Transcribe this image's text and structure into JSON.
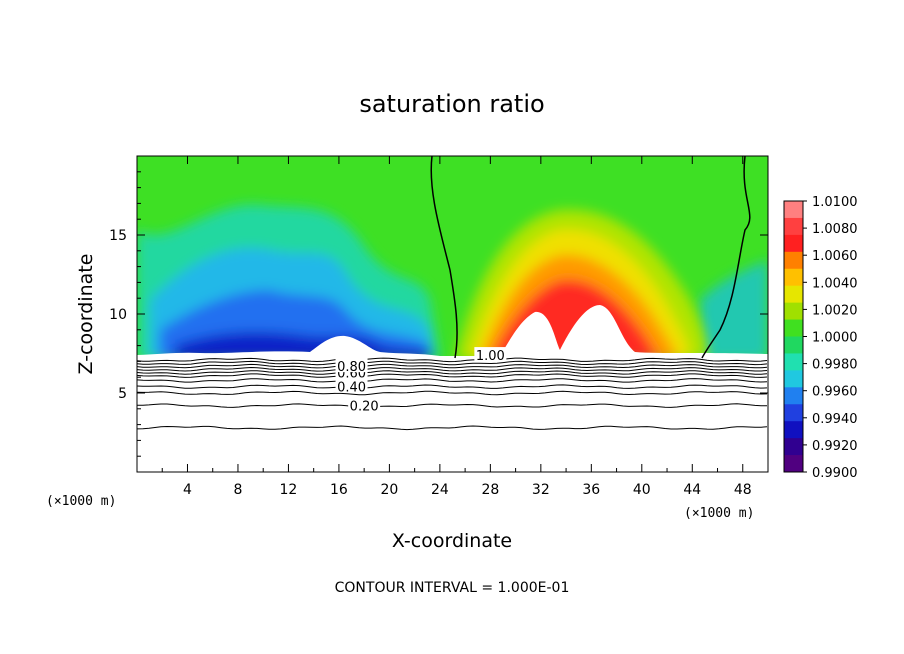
{
  "chart_data": {
    "type": "heatmap",
    "title": "saturation ratio",
    "xlabel": "X-coordinate",
    "ylabel": "Z-coordinate",
    "x_unit": "(×1000 m)",
    "z_unit": "(×1000 m)",
    "xlim": [
      0,
      50
    ],
    "ylim": [
      0,
      20
    ],
    "x_ticks": [
      4,
      8,
      12,
      16,
      20,
      24,
      28,
      32,
      36,
      40,
      44,
      48
    ],
    "y_ticks": [
      5,
      10,
      15
    ],
    "footer": "CONTOUR INTERVAL = 1.000E-01",
    "colorbar": {
      "levels": [
        "1.0100",
        "1.0080",
        "1.0060",
        "1.0040",
        "1.0020",
        "1.0000",
        "0.9980",
        "0.9960",
        "0.9940",
        "0.9920",
        "0.9900"
      ],
      "colors": [
        "#ff8080",
        "#ff4040",
        "#ff2020",
        "#ff8000",
        "#ffc000",
        "#e6e600",
        "#a0e000",
        "#40e020",
        "#20d860",
        "#20e0b0",
        "#20c8e0",
        "#2080f0",
        "#2040e0",
        "#1010c0",
        "#300090",
        "#500080"
      ]
    },
    "contours": [
      {
        "label": "0.20",
        "z": 4.2,
        "x_label": 18
      },
      {
        "label": "0.40",
        "z": 5.4,
        "x_label": 17
      },
      {
        "label": "0.60",
        "z": 6.3,
        "x_label": 17
      },
      {
        "label": "0.80",
        "z": 6.7,
        "x_label": 17
      },
      {
        "label": "1.00",
        "z": 7.4,
        "x_label": 28
      }
    ],
    "contour_lines_z": [
      2.8,
      4.2,
      5.0,
      5.4,
      5.8,
      6.1,
      6.3,
      6.5,
      6.7,
      6.9,
      7.1
    ],
    "saturation_top_z": 7.3
  }
}
